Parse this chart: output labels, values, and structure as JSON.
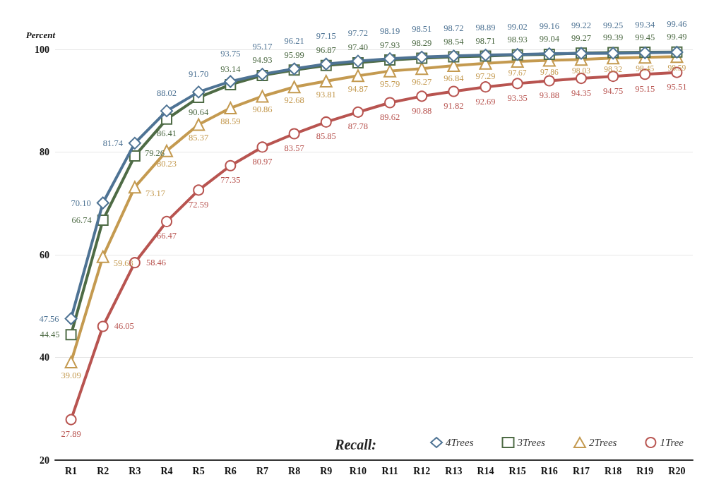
{
  "chart_data": {
    "type": "line",
    "ylabel": "Percent",
    "legend_title": "Recall:",
    "categories": [
      "R1",
      "R2",
      "R3",
      "R4",
      "R5",
      "R6",
      "R7",
      "R8",
      "R9",
      "R10",
      "R11",
      "R12",
      "R13",
      "R14",
      "R15",
      "R16",
      "R17",
      "R18",
      "R19",
      "R20"
    ],
    "ylim": [
      20,
      100
    ],
    "yticks": [
      20,
      40,
      60,
      80,
      100
    ],
    "grid": "y",
    "legend": "bottom right",
    "series": [
      {
        "name": "4Trees",
        "color": "#4e7394",
        "marker": "diamond",
        "values": [
          47.56,
          70.1,
          81.74,
          88.02,
          91.7,
          93.75,
          95.17,
          96.21,
          97.15,
          97.72,
          98.19,
          98.51,
          98.72,
          98.89,
          99.02,
          99.16,
          99.22,
          99.25,
          99.34,
          99.46
        ],
        "value_labels": [
          "47.56",
          "70.10",
          "81.74",
          "88.02",
          "91.70",
          "93.75",
          "95.17",
          "96.21",
          "97.15",
          "97.72",
          "98.19",
          "98.51",
          "98.72",
          "98.89",
          "99.02",
          "99.16",
          "99.22",
          "99.25",
          "99.34",
          "99.46"
        ]
      },
      {
        "name": "3Trees",
        "color": "#4e6b45",
        "marker": "square",
        "values": [
          44.45,
          66.74,
          79.26,
          86.41,
          90.64,
          93.14,
          94.93,
          95.99,
          96.87,
          97.4,
          97.93,
          98.29,
          98.54,
          98.71,
          98.93,
          99.04,
          99.27,
          99.39,
          99.45,
          99.49
        ],
        "value_labels": [
          "44.45",
          "66.74",
          "79.26",
          "86.41",
          "90.64",
          "93.14",
          "94.93",
          "95.99",
          "96.87",
          "97.40",
          "97.93",
          "98.29",
          "98.54",
          "98.71",
          "98.93",
          "99.04",
          "99.27",
          "99.39",
          "99.45",
          "99.49"
        ]
      },
      {
        "name": "2Trees",
        "color": "#c49a50",
        "marker": "triangle",
        "values": [
          39.09,
          59.63,
          73.17,
          80.23,
          85.37,
          88.59,
          90.86,
          92.68,
          93.81,
          94.87,
          95.79,
          96.27,
          96.84,
          97.29,
          97.67,
          97.86,
          98.03,
          98.32,
          98.45,
          98.59
        ],
        "value_labels": [
          "39.09",
          "59.63",
          "73.17",
          "80.23",
          "85.37",
          "88.59",
          "90.86",
          "92.68",
          "93.81",
          "94.87",
          "95.79",
          "96.27",
          "96.84",
          "97.29",
          "97.67",
          "97.86",
          "98.03",
          "98.32",
          "98.45",
          "98.59"
        ]
      },
      {
        "name": "1Tree",
        "color": "#b85450",
        "marker": "circle",
        "values": [
          27.89,
          46.05,
          58.46,
          66.47,
          72.59,
          77.35,
          80.97,
          83.57,
          85.85,
          87.78,
          89.62,
          90.88,
          91.82,
          92.69,
          93.35,
          93.88,
          94.35,
          94.75,
          95.15,
          95.51
        ],
        "value_labels": [
          "27.89",
          "46.05",
          "58.46",
          "66.47",
          "72.59",
          "77.35",
          "80.97",
          "83.57",
          "85.85",
          "87.78",
          "89.62",
          "90.88",
          "91.82",
          "92.69",
          "93.35",
          "93.88",
          "94.35",
          "94.75",
          "95.15",
          "95.51"
        ]
      }
    ]
  }
}
